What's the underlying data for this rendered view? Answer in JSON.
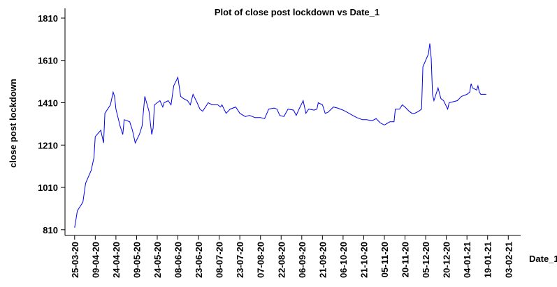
{
  "chart_data": {
    "type": "line",
    "title": "Plot of close post lockdown vs Date_1",
    "x_label": "Date_1",
    "y_label": "close post lockdown",
    "series": [
      {
        "name": "close",
        "color": "#0000ee",
        "x": [
          "2020-03-25",
          "2020-03-27",
          "2020-03-31",
          "2020-04-02",
          "2020-04-06",
          "2020-04-07",
          "2020-04-08",
          "2020-04-09",
          "2020-04-13",
          "2020-04-15",
          "2020-04-16",
          "2020-04-20",
          "2020-04-22",
          "2020-04-23",
          "2020-04-24",
          "2020-04-27",
          "2020-04-29",
          "2020-04-30",
          "2020-05-04",
          "2020-05-06",
          "2020-05-08",
          "2020-05-11",
          "2020-05-13",
          "2020-05-15",
          "2020-05-18",
          "2020-05-20",
          "2020-05-21",
          "2020-05-22",
          "2020-05-26",
          "2020-05-28",
          "2020-05-29",
          "2020-06-01",
          "2020-06-03",
          "2020-06-05",
          "2020-06-08",
          "2020-06-10",
          "2020-06-12",
          "2020-06-15",
          "2020-06-17",
          "2020-06-19",
          "2020-06-22",
          "2020-06-24",
          "2020-06-26",
          "2020-06-30",
          "2020-07-03",
          "2020-07-07",
          "2020-07-09",
          "2020-07-10",
          "2020-07-13",
          "2020-07-16",
          "2020-07-20",
          "2020-07-23",
          "2020-07-27",
          "2020-07-30",
          "2020-08-03",
          "2020-08-07",
          "2020-08-10",
          "2020-08-13",
          "2020-08-17",
          "2020-08-19",
          "2020-08-21",
          "2020-08-24",
          "2020-08-27",
          "2020-08-31",
          "2020-09-02",
          "2020-09-04",
          "2020-09-07",
          "2020-09-09",
          "2020-09-11",
          "2020-09-15",
          "2020-09-17",
          "2020-09-18",
          "2020-09-21",
          "2020-09-23",
          "2020-09-25",
          "2020-09-29",
          "2020-10-02",
          "2020-10-06",
          "2020-10-09",
          "2020-10-13",
          "2020-10-16",
          "2020-10-20",
          "2020-10-23",
          "2020-10-27",
          "2020-10-30",
          "2020-11-02",
          "2020-11-05",
          "2020-11-09",
          "2020-11-12",
          "2020-11-13",
          "2020-11-16",
          "2020-11-18",
          "2020-11-20",
          "2020-11-23",
          "2020-11-25",
          "2020-11-27",
          "2020-11-30",
          "2020-12-02",
          "2020-12-03",
          "2020-12-07",
          "2020-12-08",
          "2020-12-09",
          "2020-12-10",
          "2020-12-11",
          "2020-12-14",
          "2020-12-16",
          "2020-12-18",
          "2020-12-21",
          "2020-12-22",
          "2020-12-28",
          "2020-12-31",
          "2021-01-04",
          "2021-01-06",
          "2021-01-07",
          "2021-01-08",
          "2021-01-11",
          "2021-01-12",
          "2021-01-13",
          "2021-01-14",
          "2021-01-18"
        ],
        "values": [
          820,
          900,
          940,
          1030,
          1090,
          1120,
          1150,
          1250,
          1280,
          1220,
          1360,
          1400,
          1460,
          1440,
          1380,
          1300,
          1260,
          1330,
          1320,
          1280,
          1220,
          1260,
          1300,
          1440,
          1370,
          1260,
          1290,
          1400,
          1420,
          1390,
          1410,
          1420,
          1400,
          1490,
          1530,
          1440,
          1430,
          1420,
          1400,
          1450,
          1410,
          1380,
          1370,
          1410,
          1400,
          1400,
          1390,
          1400,
          1360,
          1380,
          1390,
          1360,
          1345,
          1350,
          1340,
          1340,
          1335,
          1380,
          1385,
          1380,
          1350,
          1345,
          1380,
          1375,
          1350,
          1380,
          1420,
          1360,
          1380,
          1375,
          1380,
          1410,
          1400,
          1360,
          1365,
          1390,
          1385,
          1375,
          1365,
          1350,
          1340,
          1330,
          1330,
          1325,
          1335,
          1315,
          1305,
          1320,
          1320,
          1380,
          1380,
          1400,
          1390,
          1370,
          1360,
          1360,
          1370,
          1380,
          1580,
          1640,
          1690,
          1620,
          1450,
          1420,
          1480,
          1430,
          1420,
          1380,
          1410,
          1420,
          1440,
          1450,
          1460,
          1500,
          1480,
          1470,
          1490,
          1460,
          1450,
          1450
        ]
      }
    ],
    "xlim": [
      "2020-03-18",
      "2021-02-12"
    ],
    "xticks": [
      {
        "value": "2020-03-25",
        "label": "25-03-20"
      },
      {
        "value": "2020-04-09",
        "label": "09-04-20"
      },
      {
        "value": "2020-04-24",
        "label": "24-04-20"
      },
      {
        "value": "2020-05-09",
        "label": "09-05-20"
      },
      {
        "value": "2020-05-24",
        "label": "24-05-20"
      },
      {
        "value": "2020-06-08",
        "label": "08-06-20"
      },
      {
        "value": "2020-06-23",
        "label": "23-06-20"
      },
      {
        "value": "2020-07-08",
        "label": "08-07-20"
      },
      {
        "value": "2020-07-23",
        "label": "23-07-20"
      },
      {
        "value": "2020-08-07",
        "label": "07-08-20"
      },
      {
        "value": "2020-08-22",
        "label": "22-08-20"
      },
      {
        "value": "2020-09-06",
        "label": "06-09-20"
      },
      {
        "value": "2020-09-21",
        "label": "21-09-20"
      },
      {
        "value": "2020-10-06",
        "label": "06-10-20"
      },
      {
        "value": "2020-10-21",
        "label": "21-10-20"
      },
      {
        "value": "2020-11-05",
        "label": "05-11-20"
      },
      {
        "value": "2020-11-20",
        "label": "20-11-20"
      },
      {
        "value": "2020-12-05",
        "label": "05-12-20"
      },
      {
        "value": "2020-12-20",
        "label": "20-12-20"
      },
      {
        "value": "2021-01-04",
        "label": "04-01-21"
      },
      {
        "value": "2021-01-19",
        "label": "19-01-21"
      },
      {
        "value": "2021-02-03",
        "label": "03-02-21"
      }
    ],
    "ylim": [
      783,
      1856
    ],
    "yticks": [
      810,
      1010,
      1210,
      1410,
      1610,
      1810
    ],
    "grid": false
  }
}
